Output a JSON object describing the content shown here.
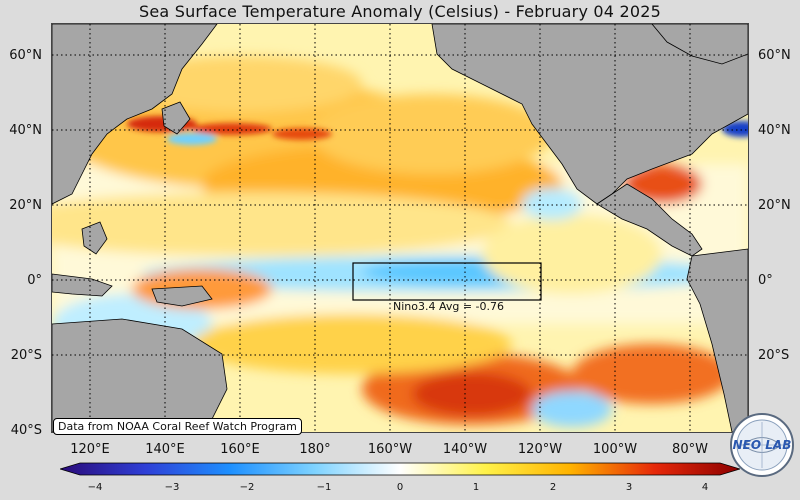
{
  "title": "Sea Surface Temperature Anomaly (Celsius) - February 04 2025",
  "lat_labels": [
    "60°N",
    "40°N",
    "20°N",
    "0°",
    "20°S",
    "40°S"
  ],
  "lon_labels": [
    "120°E",
    "140°E",
    "160°E",
    "180°",
    "160°W",
    "140°W",
    "120°W",
    "100°W",
    "80°W"
  ],
  "nino_label": "Nino3.4 Avg = -0.76",
  "credit": "Data from NOAA Coral Reef Watch Program",
  "colorbar": {
    "min": -4,
    "max": 4,
    "ticks": [
      "−4",
      "−3",
      "−2",
      "−1",
      "0",
      "1",
      "2",
      "3",
      "4"
    ],
    "colors": [
      "#2a0a78",
      "#2f3fd6",
      "#1e90ff",
      "#7fd3ff",
      "#ffffff",
      "#fff24a",
      "#ffb300",
      "#e6280a",
      "#8b0000"
    ]
  },
  "logo_text": "NEO LAB",
  "colors": {
    "land": "#a6a6a6",
    "neutral_ocean": "#ffffff",
    "cool": "#8fdcff",
    "warm": "#ffd23a",
    "hot": "#e64010"
  }
}
